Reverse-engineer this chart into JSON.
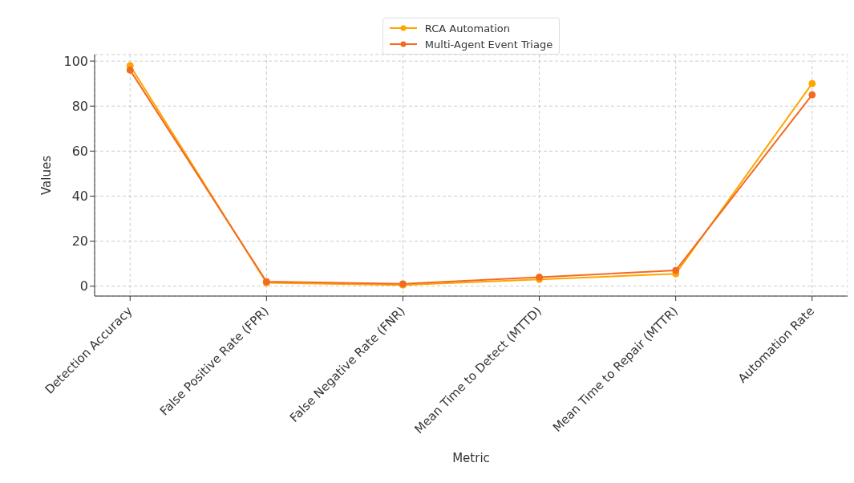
{
  "chart_data": {
    "type": "line",
    "xlabel": "Metric",
    "ylabel": "Values",
    "categories": [
      "Detection Accuracy",
      "False Positive Rate (FPR)",
      "False Negative Rate (FNR)",
      "Mean Time to Detect (MTTD)",
      "Mean Time to Repair (MTTR)",
      "Automation Rate"
    ],
    "series": [
      {
        "name": "RCA Automation",
        "color": "#ffa500",
        "values": [
          98,
          1.5,
          0.5,
          3,
          5.5,
          90
        ]
      },
      {
        "name": "Multi-Agent Event Triage",
        "color": "#f26b21",
        "values": [
          96,
          2,
          1,
          4,
          7,
          85
        ]
      }
    ],
    "ylim": [
      -4.4,
      102.9
    ],
    "yticks": [
      0,
      20,
      40,
      60,
      80,
      100
    ],
    "grid": true,
    "legend": "top",
    "marker": "circle",
    "line_style": "solid"
  }
}
